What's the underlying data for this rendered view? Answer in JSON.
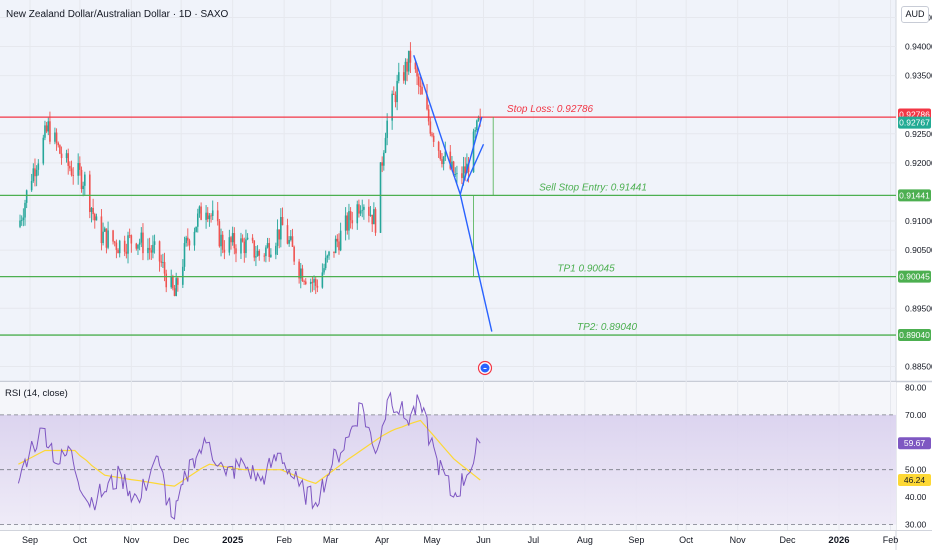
{
  "header": {
    "title": "New Zealand Dollar/Australian Dollar · 1D · SAXO",
    "currency_button": "AUD"
  },
  "colors": {
    "up": "#26a69a",
    "down": "#ef5350",
    "stop_loss": "#f23645",
    "levels": "#4caf50",
    "trendline": "#2962ff",
    "rsi_line": "#7e57c2",
    "rsi_ma": "#fdd835",
    "last_price": "#22ab94"
  },
  "chart_data": [
    {
      "type": "candlestick",
      "title": "New Zealand Dollar/Australian Dollar · 1D · SAXO",
      "x_labels": [
        "Sep",
        "Oct",
        "Nov",
        "Dec",
        "2025",
        "Feb",
        "Mar",
        "Apr",
        "May",
        "Jun",
        "Jul",
        "Aug",
        "Sep",
        "Oct",
        "Nov",
        "Dec",
        "2026",
        "Feb"
      ],
      "y_ticks": [
        "0.94500",
        "0.94000",
        "0.93500",
        "0.92500",
        "0.92000",
        "0.91000",
        "0.90500",
        "0.89500",
        "0.88500"
      ],
      "ylim": [
        0.8825,
        0.948
      ],
      "price_markers": [
        {
          "label": "0.92786",
          "value": 0.92786,
          "color": "#f23645"
        },
        {
          "label": "0.92767",
          "value": 0.92767,
          "color": "#22ab94"
        },
        {
          "label": "0.91441",
          "value": 0.91441,
          "color": "#4caf50"
        },
        {
          "label": "0.90045",
          "value": 0.90045,
          "color": "#4caf50"
        },
        {
          "label": "0.89040",
          "value": 0.8904,
          "color": "#4caf50"
        }
      ],
      "levels": [
        {
          "name": "Stop Loss: 0.92786",
          "value": 0.92786
        },
        {
          "name": "Sell Stop Entry: 0.91441",
          "value": 0.91441
        },
        {
          "name": "TP1 0.90045",
          "value": 0.90045
        },
        {
          "name": "TP2: 0.89040",
          "value": 0.8904
        }
      ],
      "price_path": [
        {
          "date": "2024-08-25",
          "price": 0.909
        },
        {
          "date": "2024-09-02",
          "price": 0.918
        },
        {
          "date": "2024-09-12",
          "price": 0.926
        },
        {
          "date": "2024-09-22",
          "price": 0.92
        },
        {
          "date": "2024-10-04",
          "price": 0.917
        },
        {
          "date": "2024-10-12",
          "price": 0.908
        },
        {
          "date": "2024-10-24",
          "price": 0.906
        },
        {
          "date": "2024-11-04",
          "price": 0.907
        },
        {
          "date": "2024-11-17",
          "price": 0.904
        },
        {
          "date": "2024-11-27",
          "price": 0.897
        },
        {
          "date": "2024-12-05",
          "price": 0.907
        },
        {
          "date": "2024-12-16",
          "price": 0.913
        },
        {
          "date": "2024-12-26",
          "price": 0.906
        },
        {
          "date": "2025-01-08",
          "price": 0.906
        },
        {
          "date": "2025-01-18",
          "price": 0.904
        },
        {
          "date": "2025-01-31",
          "price": 0.909
        },
        {
          "date": "2025-02-10",
          "price": 0.902
        },
        {
          "date": "2025-02-20",
          "price": 0.899
        },
        {
          "date": "2025-03-04",
          "price": 0.906
        },
        {
          "date": "2025-03-12",
          "price": 0.91
        },
        {
          "date": "2025-03-20",
          "price": 0.914
        },
        {
          "date": "2025-03-28",
          "price": 0.91
        },
        {
          "date": "2025-04-03",
          "price": 0.926
        },
        {
          "date": "2025-04-10",
          "price": 0.933
        },
        {
          "date": "2025-04-18",
          "price": 0.938
        },
        {
          "date": "2025-04-28",
          "price": 0.928
        },
        {
          "date": "2025-05-06",
          "price": 0.922
        },
        {
          "date": "2025-05-16",
          "price": 0.917
        },
        {
          "date": "2025-05-22",
          "price": 0.919
        },
        {
          "date": "2025-05-30",
          "price": 0.9277
        }
      ],
      "last_price": 0.92767
    },
    {
      "type": "line",
      "title": "RSI (14, close)",
      "y_ticks": [
        "80.00",
        "70.00",
        "50.00",
        "40.00",
        "30.00"
      ],
      "ylim": [
        28,
        82
      ],
      "bands": [
        30,
        50,
        70
      ],
      "series": [
        {
          "values": [
            {
              "date": "2024-08-25",
              "rsi": 45
            },
            {
              "date": "2024-09-01",
              "rsi": 57
            },
            {
              "date": "2024-09-10",
              "rsi": 65
            },
            {
              "date": "2024-09-18",
              "rsi": 52
            },
            {
              "date": "2024-09-26",
              "rsi": 57
            },
            {
              "date": "2024-10-06",
              "rsi": 38
            },
            {
              "date": "2024-10-16",
              "rsi": 42
            },
            {
              "date": "2024-10-26",
              "rsi": 48
            },
            {
              "date": "2024-11-06",
              "rsi": 38
            },
            {
              "date": "2024-11-16",
              "rsi": 55
            },
            {
              "date": "2024-11-27",
              "rsi": 32
            },
            {
              "date": "2024-12-08",
              "rsi": 54
            },
            {
              "date": "2024-12-18",
              "rsi": 60
            },
            {
              "date": "2024-12-28",
              "rsi": 48
            },
            {
              "date": "2025-01-08",
              "rsi": 52
            },
            {
              "date": "2025-01-18",
              "rsi": 46
            },
            {
              "date": "2025-01-30",
              "rsi": 56
            },
            {
              "date": "2025-02-10",
              "rsi": 44
            },
            {
              "date": "2025-02-20",
              "rsi": 38
            },
            {
              "date": "2025-03-02",
              "rsi": 52
            },
            {
              "date": "2025-03-12",
              "rsi": 62
            },
            {
              "date": "2025-03-20",
              "rsi": 74
            },
            {
              "date": "2025-03-28",
              "rsi": 56
            },
            {
              "date": "2025-04-06",
              "rsi": 78
            },
            {
              "date": "2025-04-16",
              "rsi": 68
            },
            {
              "date": "2025-04-24",
              "rsi": 74
            },
            {
              "date": "2025-05-04",
              "rsi": 54
            },
            {
              "date": "2025-05-14",
              "rsi": 40
            },
            {
              "date": "2025-05-22",
              "rsi": 48
            },
            {
              "date": "2025-05-30",
              "rsi": 59.67
            }
          ],
          "last": 59.67
        },
        {
          "values": [
            {
              "date": "2024-08-25",
              "rsi": 52
            },
            {
              "date": "2024-09-10",
              "rsi": 57
            },
            {
              "date": "2024-09-28",
              "rsi": 57
            },
            {
              "date": "2024-10-16",
              "rsi": 48
            },
            {
              "date": "2024-11-06",
              "rsi": 46
            },
            {
              "date": "2024-11-27",
              "rsi": 44
            },
            {
              "date": "2024-12-18",
              "rsi": 52
            },
            {
              "date": "2025-01-08",
              "rsi": 50
            },
            {
              "date": "2025-01-30",
              "rsi": 50
            },
            {
              "date": "2025-02-20",
              "rsi": 45
            },
            {
              "date": "2025-03-12",
              "rsi": 54
            },
            {
              "date": "2025-04-06",
              "rsi": 64
            },
            {
              "date": "2025-04-24",
              "rsi": 68
            },
            {
              "date": "2025-05-14",
              "rsi": 54
            },
            {
              "date": "2025-05-30",
              "rsi": 46.24
            }
          ],
          "last": 46.24
        }
      ]
    }
  ]
}
